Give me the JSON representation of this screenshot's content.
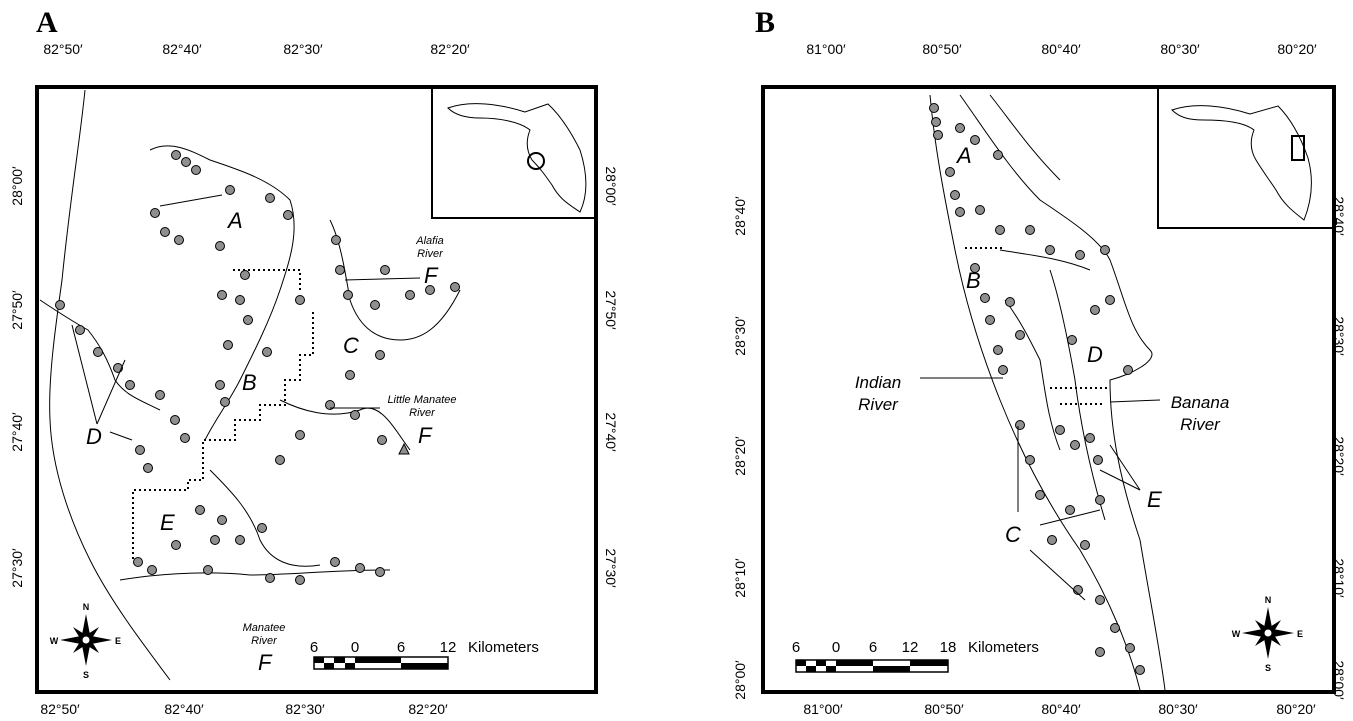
{
  "panels": [
    {
      "id": "A",
      "letter": "A",
      "top_ticks": [
        "82°50′",
        "82°40′",
        "82°30′",
        "82°20′"
      ],
      "bottom_ticks": [
        "82°50′",
        "82°40′",
        "82°30′",
        "82°20′"
      ],
      "left_ticks": [
        "28°00′",
        "27°50′",
        "27°40′",
        "27°30′"
      ],
      "right_ticks": [
        "28°00′",
        "27°50′",
        "27°40′",
        "27°30′"
      ],
      "zones": [
        "A",
        "B",
        "C",
        "D",
        "E",
        "F",
        "F",
        "F"
      ],
      "rivers": [
        {
          "line1": "Alafia",
          "line2": "River"
        },
        {
          "line1": "Little Manatee",
          "line2": "River"
        },
        {
          "line1": "Manatee",
          "line2": "River"
        }
      ],
      "scale": {
        "labels": [
          "6",
          "0",
          "6",
          "12"
        ],
        "unit": "Kilometers"
      },
      "inset_marker": "circle",
      "compass": {
        "n": "N",
        "s": "S",
        "e": "E",
        "w": "W"
      }
    },
    {
      "id": "B",
      "letter": "B",
      "top_ticks": [
        "81°00′",
        "80°50′",
        "80°40′",
        "80°30′",
        "80°20′"
      ],
      "bottom_ticks": [
        "81°00′",
        "80°50′",
        "80°40′",
        "80°30′",
        "80°20′"
      ],
      "left_ticks": [
        "28°40′",
        "28°30′",
        "28°20′",
        "28°10′",
        "28°00′"
      ],
      "right_ticks": [
        "28°40′",
        "28°30′",
        "28°20′",
        "28°10′",
        "28°00′"
      ],
      "zones": [
        "A",
        "B",
        "C",
        "D",
        "E"
      ],
      "rivers": [
        {
          "line1": "Indian",
          "line2": "River"
        },
        {
          "line1": "Banana",
          "line2": "River"
        }
      ],
      "scale": {
        "labels": [
          "6",
          "0",
          "6",
          "12",
          "18"
        ],
        "unit": "Kilometers"
      },
      "inset_marker": "rectangle",
      "compass": {
        "n": "N",
        "s": "S",
        "e": "E",
        "w": "W"
      }
    }
  ]
}
